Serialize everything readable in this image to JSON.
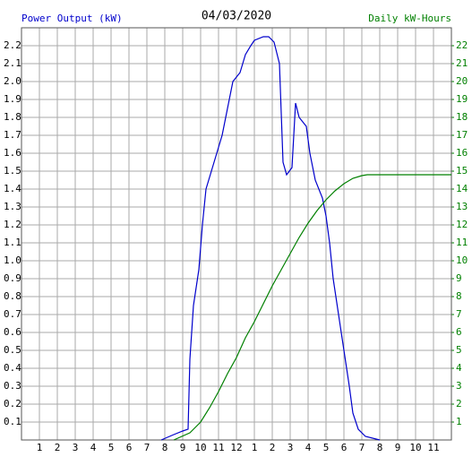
{
  "chart_data": {
    "type": "line",
    "title": "04/03/2020",
    "y_label": "Power Output (kW)",
    "y2_label": "Daily kW-Hours",
    "xlim": [
      0,
      24
    ],
    "xticks": [
      1,
      2,
      3,
      4,
      5,
      6,
      7,
      8,
      9,
      10,
      11,
      12,
      {
        "value": 13,
        "label": "1"
      },
      {
        "value": 14,
        "label": "2"
      },
      {
        "value": 15,
        "label": "3"
      },
      {
        "value": 16,
        "label": "4"
      },
      {
        "value": 17,
        "label": "5"
      },
      {
        "value": 18,
        "label": "6"
      },
      {
        "value": 19,
        "label": "7"
      },
      {
        "value": 20,
        "label": "8"
      },
      {
        "value": 21,
        "label": "9"
      },
      {
        "value": 22,
        "label": "10"
      },
      {
        "value": 23,
        "label": "11"
      }
    ],
    "ylim": [
      0,
      2.3
    ],
    "yticks": [
      0.1,
      0.2,
      0.3,
      0.4,
      0.5,
      0.6,
      0.7,
      0.8,
      0.9,
      {
        "value": 1,
        "label": "1.0"
      },
      1.1,
      1.2,
      1.3,
      1.4,
      1.5,
      1.6,
      1.7,
      1.8,
      1.9,
      {
        "value": 2,
        "label": "2.0"
      },
      2.1,
      2.2
    ],
    "y2lim": [
      0,
      23
    ],
    "y2ticks": [
      1,
      2,
      3,
      4,
      5,
      6,
      7,
      8,
      9,
      10,
      11,
      12,
      13,
      14,
      15,
      16,
      17,
      18,
      19,
      20,
      21,
      22
    ],
    "grid": true,
    "series": [
      {
        "name": "Power Output (kW)",
        "color": "#0000cc",
        "x": [
          7.8,
          8.5,
          9.0,
          9.3,
          9.4,
          9.6,
          9.9,
          10.1,
          10.3,
          10.6,
          10.9,
          11.2,
          11.5,
          11.8,
          12.2,
          12.5,
          12.8,
          13.0,
          13.5,
          13.8,
          14.1,
          14.4,
          14.6,
          14.8,
          15.1,
          15.3,
          15.5,
          15.9,
          16.1,
          16.4,
          16.8,
          17.0,
          17.2,
          17.4,
          17.7,
          18.0,
          18.3,
          18.5,
          18.8,
          19.2,
          20.0
        ],
        "values": [
          0.0,
          0.03,
          0.05,
          0.06,
          0.45,
          0.75,
          0.95,
          1.2,
          1.4,
          1.5,
          1.6,
          1.7,
          1.85,
          2.0,
          2.05,
          2.15,
          2.2,
          2.23,
          2.25,
          2.25,
          2.22,
          2.1,
          1.55,
          1.48,
          1.52,
          1.88,
          1.8,
          1.75,
          1.6,
          1.45,
          1.35,
          1.25,
          1.1,
          0.9,
          0.7,
          0.5,
          0.3,
          0.15,
          0.06,
          0.02,
          0.0
        ]
      },
      {
        "name": "Daily kW-Hours",
        "color": "#008000",
        "axis": "y2",
        "x": [
          8.5,
          9.4,
          10.0,
          10.5,
          11.0,
          11.5,
          12.0,
          12.5,
          13.0,
          13.5,
          14.0,
          14.5,
          15.0,
          15.5,
          16.0,
          16.5,
          17.0,
          17.5,
          18.0,
          18.5,
          19.0,
          19.3,
          24.0
        ],
        "values": [
          0.0,
          0.4,
          1.0,
          1.8,
          2.7,
          3.7,
          4.6,
          5.7,
          6.6,
          7.6,
          8.6,
          9.5,
          10.4,
          11.3,
          12.1,
          12.8,
          13.4,
          13.9,
          14.3,
          14.6,
          14.75,
          14.8,
          14.8
        ]
      }
    ]
  }
}
